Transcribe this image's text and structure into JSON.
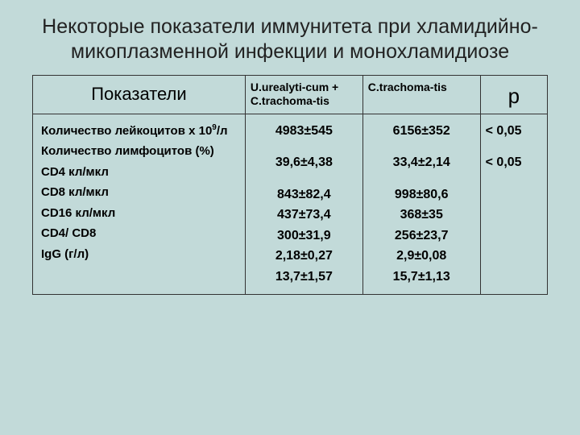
{
  "slide": {
    "title": "Некоторые показатели иммунитета при хламидийно-микоплазменной инфекции и монохламидиозе",
    "background_color": "#c2dad9",
    "border_color": "#333333",
    "title_fontsize": 25,
    "header": {
      "indicator_label": "Показатели",
      "group1_label": "U.urealyti-cum + C.trachoma-tis",
      "group2_label": "C.trachoma-tis",
      "p_label": "р"
    },
    "rows": {
      "labels": [
        "Количество лейкоцитов х 10",
        "Количество лимфоцитов (%)",
        "CD4 кл/мкл",
        "CD8 кл/мкл",
        "CD16 кл/мкл",
        "CD4/ CD8",
        "IgG (г/л)"
      ],
      "sup_for_row0": "9",
      "suffix_for_row0": "/л",
      "group1": [
        "4983±545",
        "39,6±4,38",
        "843±82,4",
        "437±73,4",
        "300±31,9",
        "2,18±0,27",
        "13,7±1,57"
      ],
      "group2": [
        "6156±352",
        "33,4±2,14",
        "998±80,6",
        "368±35",
        "256±23,7",
        "2,9±0,08",
        "15,7±1,13"
      ],
      "p_values": [
        "< 0,05",
        "< 0,05",
        "",
        "",
        "",
        "",
        ""
      ]
    },
    "fonts": {
      "header_indicator_size": 22,
      "header_small_size": 14,
      "header_p_size": 26,
      "row_label_size": 15,
      "data_size": 16
    }
  }
}
